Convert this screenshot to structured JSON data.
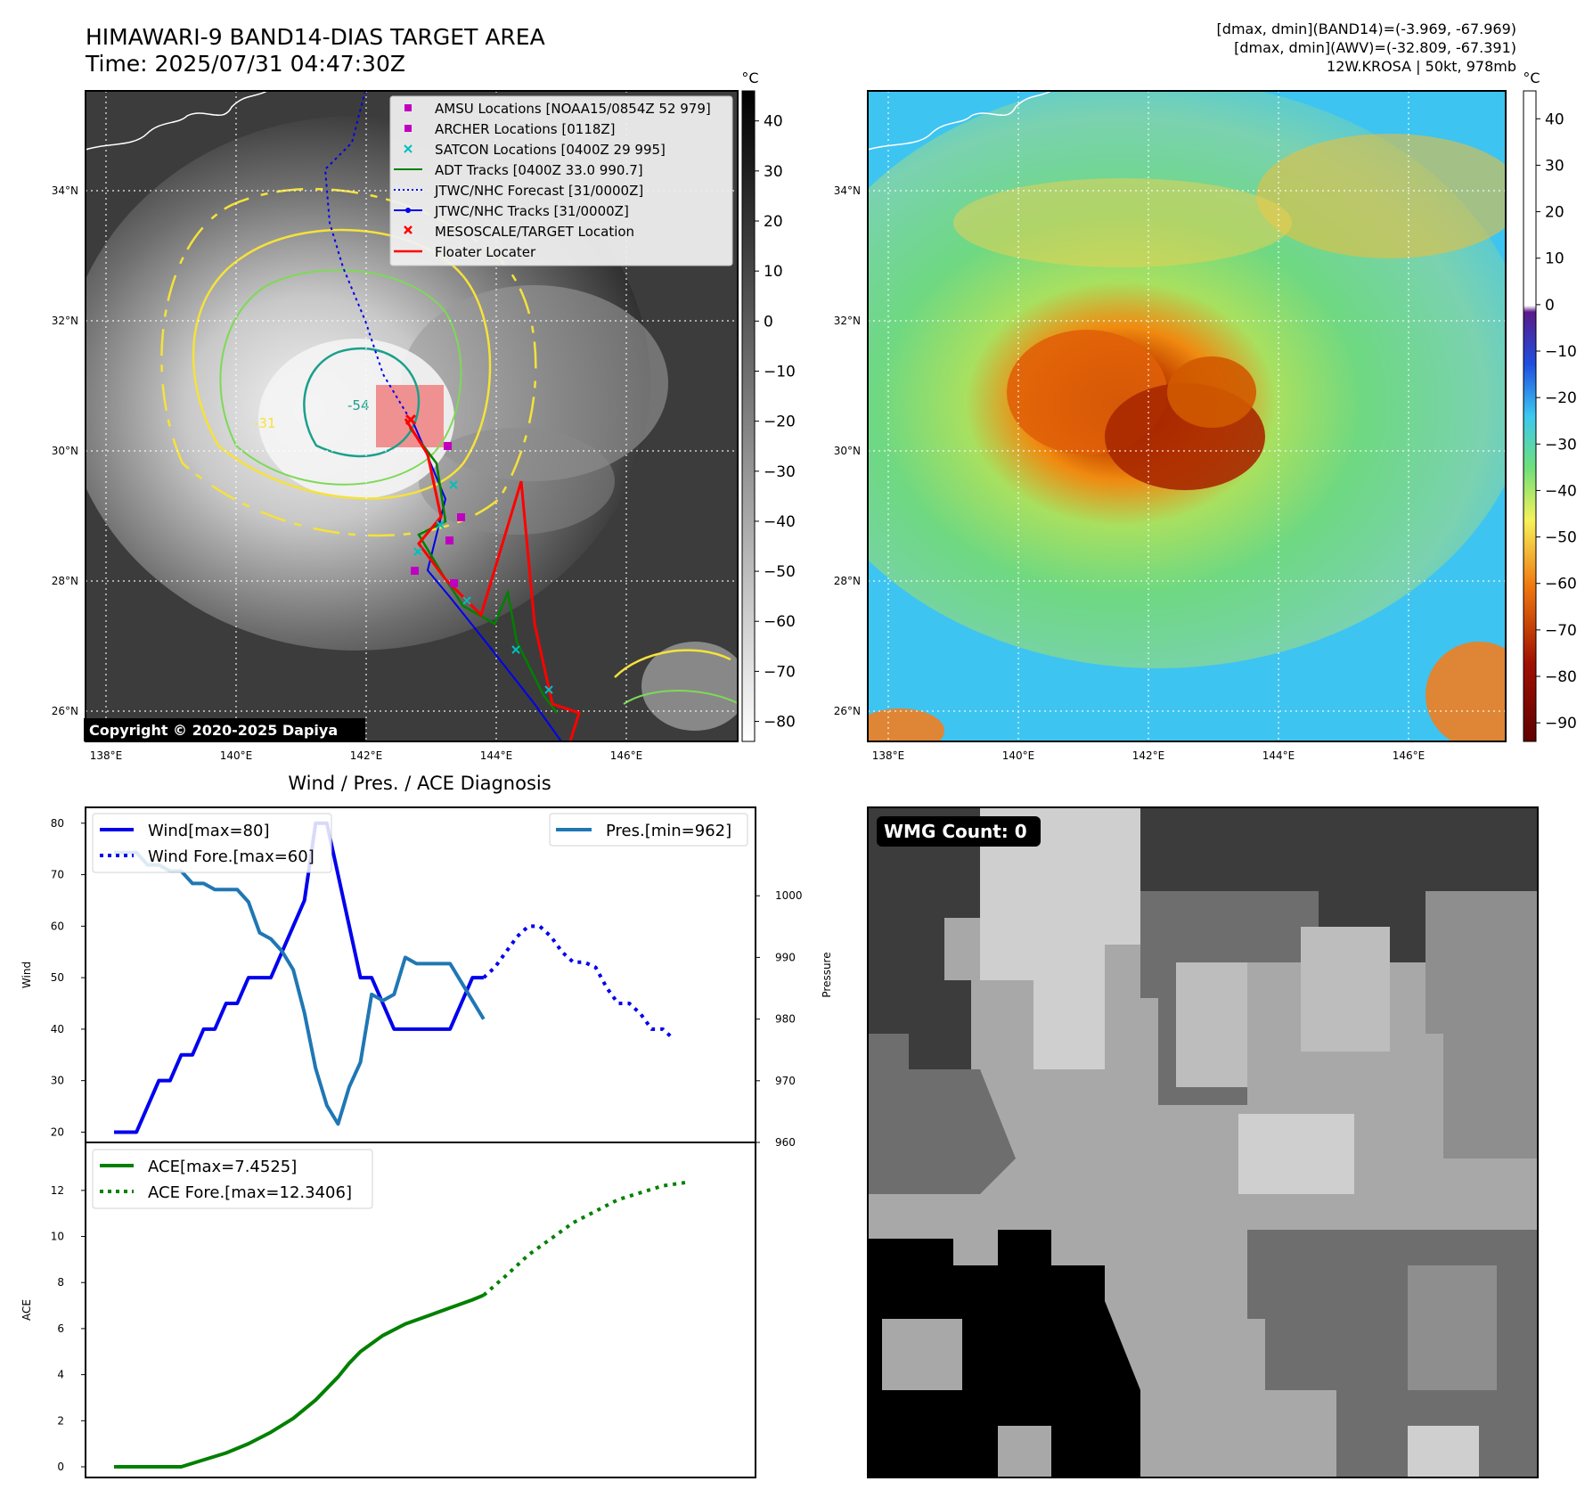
{
  "header": {
    "title": "HIMAWARI-9 BAND14-DIAS TARGET AREA",
    "time": "Time: 2025/07/31 04:47:30Z",
    "info_line1": "[dmax, dmin](BAND14)=(-3.969, -67.969)",
    "info_line2": "[dmax, dmin](AWV)=(-32.809, -67.391)",
    "info_line3": "12W.KROSA | 50kt, 978mb"
  },
  "copyright": "Copyright © 2020-2025 Dapiya",
  "colors": {
    "wind": "#0000ee",
    "pressure": "#1f77b4",
    "ace": "#008000",
    "track_red": "#ff0000",
    "contour_yellow": "#f5e23a",
    "contour_green": "#7ed957",
    "contour_teal": "#1aa08c"
  },
  "map": {
    "lat_labels": [
      "34°N",
      "32°N",
      "30°N",
      "28°N",
      "26°N"
    ],
    "lon_labels": [
      "138°E",
      "140°E",
      "142°E",
      "144°E",
      "146°E"
    ],
    "contour_labels": [
      "-54",
      "-31"
    ],
    "legend": [
      {
        "label": "AMSU Locations [NOAA15/0854Z 52 979]",
        "marker": "square",
        "color": "#c000c0"
      },
      {
        "label": "ARCHER Locations [0118Z]",
        "marker": "square",
        "color": "#c000c0"
      },
      {
        "label": "SATCON Locations [0400Z 29 995]",
        "marker": "x",
        "color": "#00bfbf"
      },
      {
        "label": "ADT Tracks [0400Z 33.0 990.7]",
        "marker": "line",
        "color": "#008000"
      },
      {
        "label": "JTWC/NHC Forecast [31/0000Z]",
        "marker": "dotted",
        "color": "#0000ee"
      },
      {
        "label": "JTWC/NHC Tracks [31/0000Z]",
        "marker": "line-dot",
        "color": "#0000ee"
      },
      {
        "label": "MESOSCALE/TARGET Location",
        "marker": "x",
        "color": "#ff0000"
      },
      {
        "label": "Floater Locater",
        "marker": "line",
        "color": "#ff0000"
      }
    ]
  },
  "colorbar_left": {
    "unit": "°C",
    "ticks": [
      "40",
      "30",
      "20",
      "10",
      "0",
      "−10",
      "−20",
      "−30",
      "−40",
      "−50",
      "−60",
      "−70",
      "−80"
    ]
  },
  "colorbar_right": {
    "unit": "°C",
    "ticks": [
      "40",
      "30",
      "20",
      "10",
      "0",
      "−10",
      "−20",
      "−30",
      "−40",
      "−50",
      "−60",
      "−70",
      "−80",
      "−90"
    ]
  },
  "wmg": {
    "label": "WMG Count: 0"
  },
  "chart_data": [
    {
      "type": "line",
      "title": "Wind / Pres. / ACE Diagnosis",
      "ylabel": "Wind",
      "ylabel_right": "Pressure",
      "ylim": [
        18,
        81
      ],
      "ylim_right": [
        960,
        1010
      ],
      "yticks": [
        20,
        30,
        40,
        50,
        60,
        70,
        80
      ],
      "yticks_right": [
        960,
        970,
        980,
        990,
        1000
      ],
      "legend": [
        "Wind[max=80]",
        "Wind Fore.[max=60]",
        "Pres.[min=962]"
      ],
      "series": [
        {
          "name": "Wind[max=80]",
          "style": "solid",
          "x": [
            0,
            1,
            2,
            3,
            4,
            5,
            6,
            7,
            8,
            9,
            10,
            11,
            12,
            13,
            14,
            15,
            16,
            17,
            18,
            19,
            20,
            21,
            22,
            23,
            24,
            25,
            26,
            27,
            28,
            29,
            30,
            31,
            32,
            33
          ],
          "values": [
            20,
            20,
            20,
            25,
            30,
            30,
            35,
            35,
            40,
            40,
            45,
            45,
            50,
            50,
            50,
            55,
            60,
            65,
            80,
            80,
            70,
            60,
            50,
            50,
            45,
            40,
            40,
            40,
            40,
            40,
            40,
            45,
            50,
            50
          ]
        },
        {
          "name": "Wind Fore.[max=60]",
          "style": "dotted",
          "x": [
            33,
            34,
            35,
            36,
            37,
            38,
            39,
            40,
            41,
            42,
            43,
            44,
            45,
            46,
            47,
            48,
            49,
            50
          ],
          "values": [
            50,
            52,
            55,
            58,
            60,
            60,
            58,
            55,
            53,
            53,
            52,
            48,
            45,
            45,
            43,
            40,
            40,
            38
          ]
        },
        {
          "name": "Pres.[min=962]",
          "style": "solid",
          "x": [
            0,
            1,
            2,
            3,
            4,
            5,
            6,
            7,
            8,
            9,
            10,
            11,
            12,
            13,
            14,
            15,
            16,
            17,
            18,
            19,
            20,
            21,
            22,
            23,
            24,
            25,
            26,
            27,
            28,
            29,
            30,
            31,
            32,
            33
          ],
          "values": [
            1007,
            1007,
            1007,
            1005,
            1005,
            1004,
            1004,
            1002,
            1002,
            1001,
            1001,
            1001,
            999,
            994,
            993,
            991,
            988,
            981,
            972,
            966,
            963,
            969,
            973,
            984,
            983,
            984,
            990,
            989,
            989,
            989,
            989,
            986,
            983,
            980
          ]
        }
      ]
    },
    {
      "type": "line",
      "ylabel": "ACE",
      "ylim": [
        -0.3,
        13
      ],
      "yticks": [
        0,
        2,
        4,
        6,
        8,
        10,
        12
      ],
      "legend": [
        "ACE[max=7.4525]",
        "ACE Fore.[max=12.3406]"
      ],
      "series": [
        {
          "name": "ACE[max=7.4525]",
          "style": "solid",
          "x": [
            0,
            3,
            6,
            8,
            10,
            12,
            14,
            16,
            18,
            20,
            21,
            22,
            24,
            26,
            28,
            30,
            32,
            33
          ],
          "values": [
            0,
            0,
            0,
            0.3,
            0.6,
            1.0,
            1.5,
            2.1,
            2.9,
            3.9,
            4.5,
            5.0,
            5.7,
            6.2,
            6.55,
            6.9,
            7.25,
            7.45
          ]
        },
        {
          "name": "ACE Fore.[max=12.3406]",
          "style": "dotted",
          "x": [
            33,
            35,
            37,
            39,
            41,
            43,
            45,
            47,
            49,
            51
          ],
          "values": [
            7.45,
            8.3,
            9.2,
            9.9,
            10.6,
            11.1,
            11.6,
            11.9,
            12.2,
            12.34
          ]
        }
      ]
    }
  ]
}
